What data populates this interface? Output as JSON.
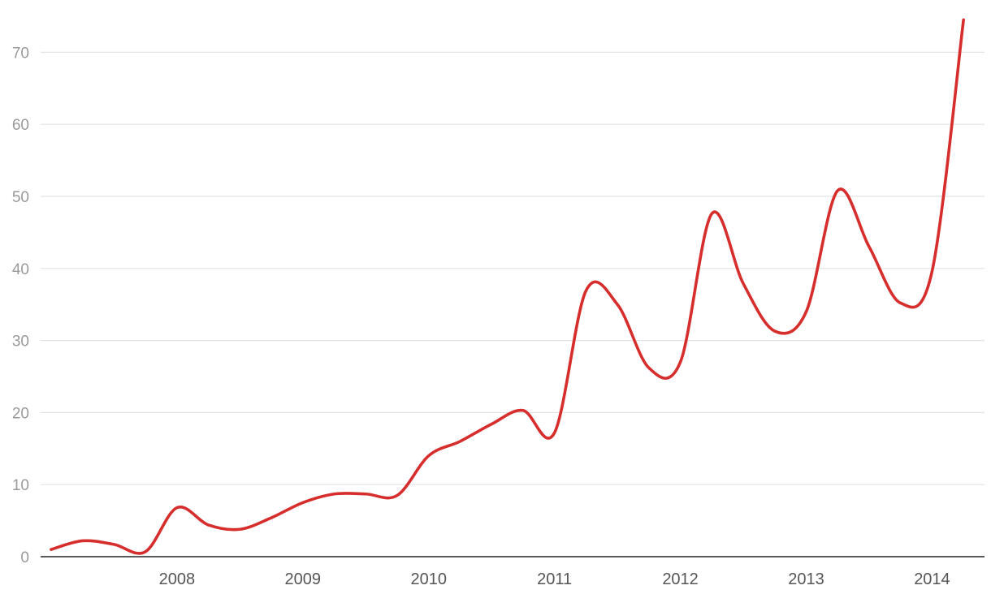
{
  "chart_data": {
    "type": "line",
    "title": "",
    "xlabel": "",
    "ylabel": "",
    "x_ticks": [
      "2008",
      "2009",
      "2010",
      "2011",
      "2012",
      "2013",
      "2014"
    ],
    "y_ticks": [
      0,
      10,
      20,
      30,
      40,
      50,
      60,
      70
    ],
    "ylim": [
      0,
      75
    ],
    "xlim": [
      "2007-06",
      "2014-12"
    ],
    "grid": "horizontal",
    "legend": "none",
    "line_style": "smooth",
    "colors": {
      "series": "#d62d2d",
      "grid": "#e3e3e3",
      "axis": "#222222"
    },
    "series": [
      {
        "points": [
          {
            "x": "2007-07",
            "y": 1.0
          },
          {
            "x": "2007-10",
            "y": 2.2
          },
          {
            "x": "2008-01",
            "y": 1.7
          },
          {
            "x": "2008-04",
            "y": 0.7
          },
          {
            "x": "2008-07",
            "y": 6.8
          },
          {
            "x": "2008-10",
            "y": 4.4
          },
          {
            "x": "2009-01",
            "y": 3.8
          },
          {
            "x": "2009-04",
            "y": 5.4
          },
          {
            "x": "2009-07",
            "y": 7.5
          },
          {
            "x": "2009-10",
            "y": 8.7
          },
          {
            "x": "2010-01",
            "y": 8.7
          },
          {
            "x": "2010-04",
            "y": 8.5
          },
          {
            "x": "2010-07",
            "y": 14.0
          },
          {
            "x": "2010-10",
            "y": 16.0
          },
          {
            "x": "2011-01",
            "y": 18.4
          },
          {
            "x": "2011-04",
            "y": 20.3
          },
          {
            "x": "2011-07",
            "y": 17.2
          },
          {
            "x": "2011-10",
            "y": 36.9
          },
          {
            "x": "2012-01",
            "y": 35.0
          },
          {
            "x": "2012-04",
            "y": 26.2
          },
          {
            "x": "2012-07",
            "y": 27.0
          },
          {
            "x": "2012-10",
            "y": 47.6
          },
          {
            "x": "2013-01",
            "y": 37.9
          },
          {
            "x": "2013-04",
            "y": 31.3
          },
          {
            "x": "2013-07",
            "y": 34.0
          },
          {
            "x": "2013-10",
            "y": 50.8
          },
          {
            "x": "2014-01",
            "y": 43.0
          },
          {
            "x": "2014-04",
            "y": 35.2
          },
          {
            "x": "2014-07",
            "y": 39.6
          },
          {
            "x": "2014-10",
            "y": 74.5
          }
        ]
      }
    ]
  }
}
